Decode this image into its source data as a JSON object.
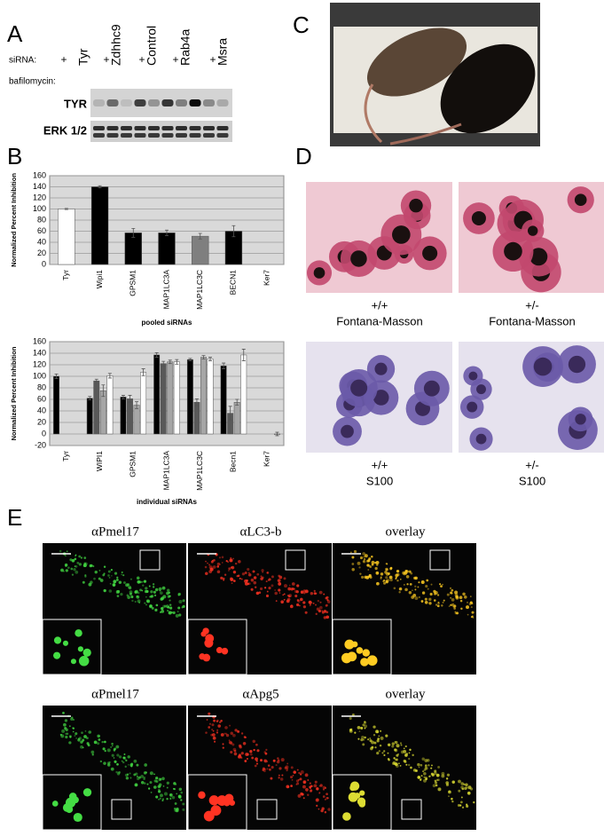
{
  "panel_labels": [
    "A",
    "B",
    "C",
    "D",
    "E"
  ],
  "panel_a": {
    "row_labels": [
      "siRNA:",
      "bafilomycin:"
    ],
    "lanes": [
      "Tyr",
      "Zdhhc9",
      "Control",
      "Rab4a",
      "Msra"
    ],
    "plus": [
      "+",
      "+",
      "+",
      "+",
      "+"
    ],
    "blots": [
      "TYR",
      "ERK 1/2"
    ]
  },
  "panel_d": {
    "captions": [
      [
        "+/+",
        "Fontana-Masson"
      ],
      [
        "+/-",
        "Fontana-Masson"
      ],
      [
        "+/+",
        "S100"
      ],
      [
        "+/-",
        "S100"
      ]
    ]
  },
  "panel_e": {
    "columns": [
      [
        "αPmel17",
        "αLC3-b",
        "overlay"
      ],
      [
        "αPmel17",
        "αApg5",
        "overlay"
      ]
    ]
  },
  "chart_data": [
    {
      "type": "bar",
      "y_label": "Normalized Percent Inhibition",
      "x_label": "pooled siRNAs",
      "categories": [
        "Tyr",
        "Wipi1",
        "GPSM1",
        "MAP1LC3A",
        "MAP1LC3C",
        "BECN1",
        "Ker7"
      ],
      "values": [
        100,
        140,
        57,
        57,
        51,
        60,
        null
      ],
      "errors": [
        1,
        2,
        8,
        5,
        5,
        10,
        null
      ],
      "colors": [
        "#ffffff",
        "#000000",
        "#000000",
        "#000000",
        "#7f7f7f",
        "#000000",
        "#000000"
      ],
      "ylim": [
        0,
        160
      ],
      "yticks": [
        0,
        20,
        40,
        60,
        80,
        100,
        120,
        140,
        160
      ],
      "grid": true
    },
    {
      "type": "grouped_bar",
      "y_label": "Normalized Percent Inhibition",
      "x_label": "individual siRNAs",
      "categories": [
        "Tyr",
        "WIPI1",
        "GPSM1",
        "MAP1LC3A",
        "MAP1LC3C",
        "Becn1",
        "Ker7"
      ],
      "series": [
        {
          "color": "#000000",
          "values": [
            100,
            62,
            64,
            137,
            129,
            118,
            null
          ],
          "errors": [
            4,
            3,
            3,
            4,
            2,
            5,
            null
          ]
        },
        {
          "color": "#595959",
          "values": [
            null,
            92,
            61,
            122,
            55,
            36,
            null
          ],
          "errors": [
            null,
            3,
            6,
            4,
            6,
            12,
            null
          ]
        },
        {
          "color": "#a6a6a6",
          "values": [
            null,
            75,
            50,
            125,
            133,
            55,
            null
          ],
          "errors": [
            null,
            10,
            6,
            3,
            3,
            5,
            null
          ]
        },
        {
          "color": "#ffffff",
          "values": [
            null,
            101,
            107,
            125,
            130,
            137,
            0
          ],
          "errors": [
            null,
            4,
            6,
            4,
            3,
            10,
            3
          ]
        }
      ],
      "ylim": [
        -20,
        160
      ],
      "yticks": [
        -20,
        0,
        20,
        40,
        60,
        80,
        100,
        120,
        140,
        160
      ],
      "grid": true
    }
  ]
}
